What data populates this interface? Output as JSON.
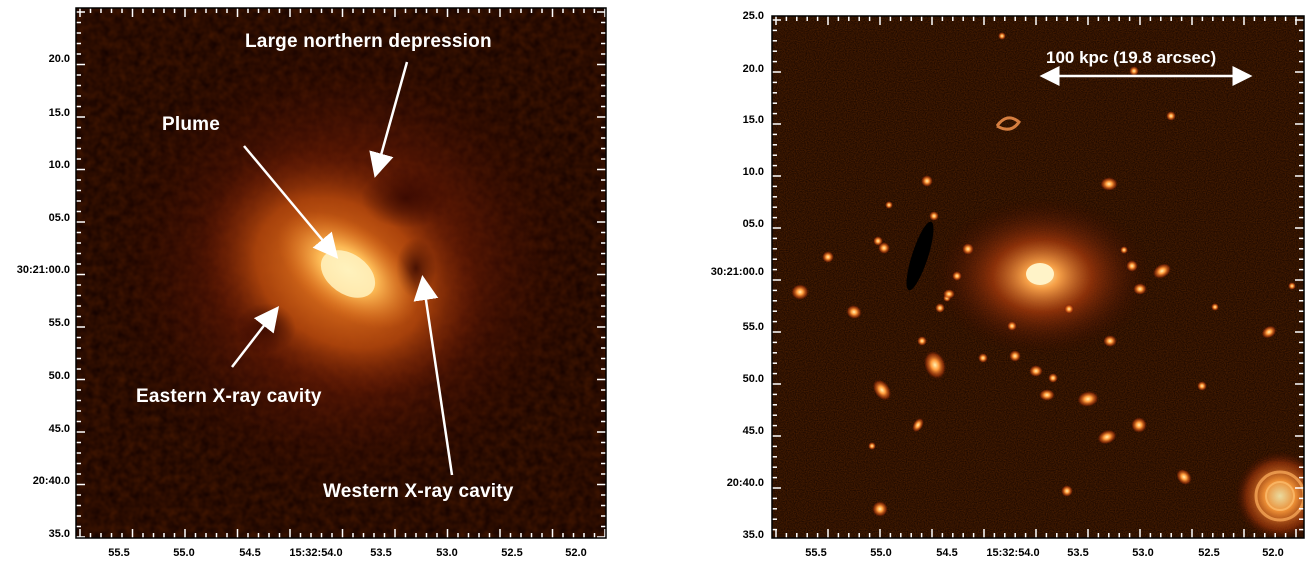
{
  "left_panel": {
    "annotations": {
      "large_northern_depression": "Large northern depression",
      "plume": "Plume",
      "eastern_cavity": "Eastern X-ray cavity",
      "western_cavity": "Western X-ray cavity"
    },
    "y_ticks": [
      "20.0",
      "15.0",
      "10.0",
      "05.0",
      "30:21:00.0",
      "55.0",
      "50.0",
      "45.0",
      "20:40.0",
      "35.0"
    ],
    "x_ticks": [
      "55.5",
      "55.0",
      "54.5",
      "15:32:54.0",
      "53.5",
      "53.0",
      "52.5",
      "52.0"
    ]
  },
  "right_panel": {
    "scale_bar_label": "100 kpc (19.8 arcsec)",
    "y_ticks": [
      "25.0",
      "20.0",
      "15.0",
      "10.0",
      "05.0",
      "30:21:00.0",
      "55.0",
      "50.0",
      "45.0",
      "20:40.0",
      "35.0"
    ],
    "x_ticks": [
      "55.5",
      "55.0",
      "54.5",
      "15:32:54.0",
      "53.5",
      "53.0",
      "52.5",
      "52.0"
    ]
  },
  "colors": {
    "xray_core": "#ffd36a",
    "xray_mid": "#e0601a",
    "background": "#100000",
    "annotation": "#ffffff"
  }
}
